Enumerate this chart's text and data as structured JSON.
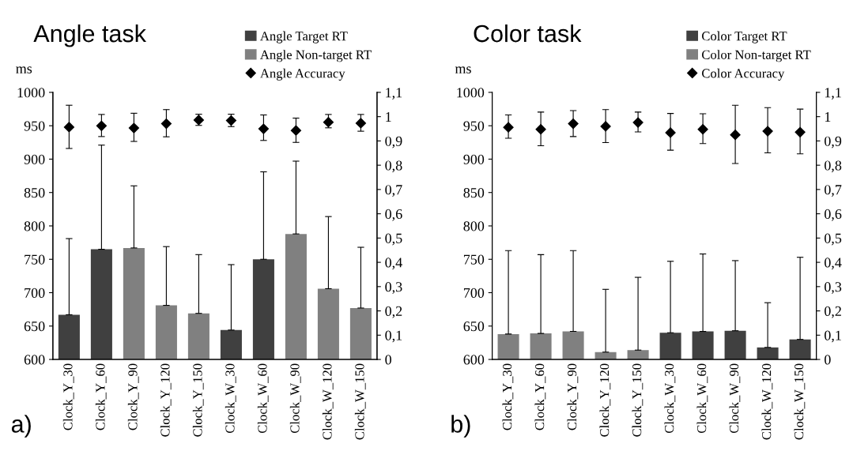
{
  "chart_data": [
    {
      "type": "bar",
      "title": "Angle task",
      "ylabel": "ms",
      "annotations": [
        "a)"
      ],
      "legend": "top right",
      "marker": "diamond",
      "categories": [
        "Clock_Y_30",
        "Clock_Y_60",
        "Clock_Y_90",
        "Clock_Y_120",
        "Clock_Y_150",
        "Clock_W_30",
        "Clock_W_60",
        "Clock_W_90",
        "Clock_W_120",
        "Clock_W_150"
      ],
      "ylim": [
        600,
        1000
      ],
      "yticks": [
        600,
        650,
        700,
        750,
        800,
        850,
        900,
        950,
        1000
      ],
      "y2lim": [
        0,
        1.1
      ],
      "y2ticks": [
        0,
        {
          "value": 0.1,
          "label": "0,1"
        },
        {
          "value": 0.2,
          "label": "0,2"
        },
        {
          "value": 0.3,
          "label": "0,3"
        },
        {
          "value": 0.4,
          "label": "0,4"
        },
        {
          "value": 0.5,
          "label": "0,5"
        },
        {
          "value": 0.6,
          "label": "0,6"
        },
        {
          "value": 0.7,
          "label": "0,7"
        },
        {
          "value": 0.8,
          "label": "0,8"
        },
        {
          "value": 0.9,
          "label": "0,9"
        },
        1,
        {
          "value": 1.1,
          "label": "1,1"
        }
      ],
      "series": [
        {
          "name": "Angle Target RT",
          "color": "#404040",
          "values": [
            667,
            765,
            null,
            null,
            null,
            644,
            750,
            null,
            null,
            null
          ],
          "errors": [
            [
              667,
              781
            ],
            [
              765,
              921
            ],
            null,
            null,
            null,
            [
              644,
              742
            ],
            [
              750,
              881
            ],
            null,
            null,
            null
          ]
        },
        {
          "name": "Angle Non-target RT",
          "color": "#808080",
          "values": [
            null,
            null,
            767,
            681,
            669,
            null,
            null,
            788,
            706,
            677
          ],
          "errors": [
            null,
            null,
            [
              767,
              860
            ],
            [
              681,
              769
            ],
            [
              669,
              757
            ],
            null,
            null,
            [
              788,
              897
            ],
            [
              706,
              814
            ],
            [
              677,
              768
            ]
          ]
        },
        {
          "name": "Angle Accuracy",
          "type": "scatter",
          "axis": "y2",
          "color": "#000000",
          "values": [
            0.957,
            0.962,
            0.953,
            0.971,
            0.986,
            0.984,
            0.95,
            0.943,
            0.977,
            0.973
          ],
          "errors": [
            [
              0.869,
              1.047
            ],
            [
              0.918,
              1.009
            ],
            [
              0.898,
              1.014
            ],
            [
              0.917,
              1.029
            ],
            [
              0.964,
              1.01
            ],
            [
              0.959,
              1.01
            ],
            [
              0.902,
              1.007
            ],
            [
              0.894,
              0.994
            ],
            [
              0.954,
              1.009
            ],
            [
              0.94,
              1.009
            ]
          ]
        }
      ]
    },
    {
      "type": "bar",
      "title": "Color task",
      "ylabel": "ms",
      "annotations": [
        "b)"
      ],
      "legend": "top right",
      "marker": "diamond",
      "categories": [
        "Clock_Y_30",
        "Clock_Y_60",
        "Clock_Y_90",
        "Clock_Y_120",
        "Clock_Y_150",
        "Clock_W_30",
        "Clock_W_60",
        "Clock_W_90",
        "Clock_W_120",
        "Clock_W_150"
      ],
      "ylim": [
        600,
        1000
      ],
      "yticks": [
        600,
        650,
        700,
        750,
        800,
        850,
        900,
        950,
        1000
      ],
      "y2lim": [
        0,
        1.1
      ],
      "y2ticks": [
        0,
        {
          "value": 0.1,
          "label": "0,1"
        },
        {
          "value": 0.2,
          "label": "0,2"
        },
        {
          "value": 0.3,
          "label": "0,3"
        },
        {
          "value": 0.4,
          "label": "0,4"
        },
        {
          "value": 0.5,
          "label": "0,5"
        },
        {
          "value": 0.6,
          "label": "0,6"
        },
        {
          "value": 0.7,
          "label": "0,7"
        },
        {
          "value": 0.8,
          "label": "0,8"
        },
        {
          "value": 0.9,
          "label": "0,9"
        },
        1,
        {
          "value": 1.1,
          "label": "1,1"
        }
      ],
      "series": [
        {
          "name": "Color Target RT",
          "color": "#404040",
          "values": [
            null,
            null,
            null,
            null,
            null,
            640,
            642,
            643,
            618,
            630
          ],
          "errors": [
            null,
            null,
            null,
            null,
            null,
            [
              640,
              747
            ],
            [
              642,
              758
            ],
            [
              643,
              748
            ],
            [
              618,
              685
            ],
            [
              630,
              753
            ]
          ]
        },
        {
          "name": "Color Non-target RT",
          "color": "#808080",
          "values": [
            638,
            639,
            642,
            611,
            614,
            null,
            null,
            null,
            null,
            null
          ],
          "errors": [
            [
              638,
              763
            ],
            [
              639,
              757
            ],
            [
              642,
              763
            ],
            [
              611,
              705
            ],
            [
              614,
              723
            ],
            null,
            null,
            null,
            null,
            null
          ]
        },
        {
          "name": "Color Accuracy",
          "type": "scatter",
          "axis": "y2",
          "color": "#000000",
          "values": [
            0.956,
            0.948,
            0.971,
            0.96,
            0.976,
            0.934,
            0.948,
            0.925,
            0.94,
            0.936
          ],
          "errors": [
            [
              0.911,
              1.007
            ],
            [
              0.88,
              1.019
            ],
            [
              0.918,
              1.025
            ],
            [
              0.893,
              1.029
            ],
            [
              0.937,
              1.019
            ],
            [
              0.862,
              1.013
            ],
            [
              0.889,
              1.012
            ],
            [
              0.807,
              1.047
            ],
            [
              0.851,
              1.037
            ],
            [
              0.847,
              1.031
            ]
          ]
        }
      ]
    }
  ]
}
